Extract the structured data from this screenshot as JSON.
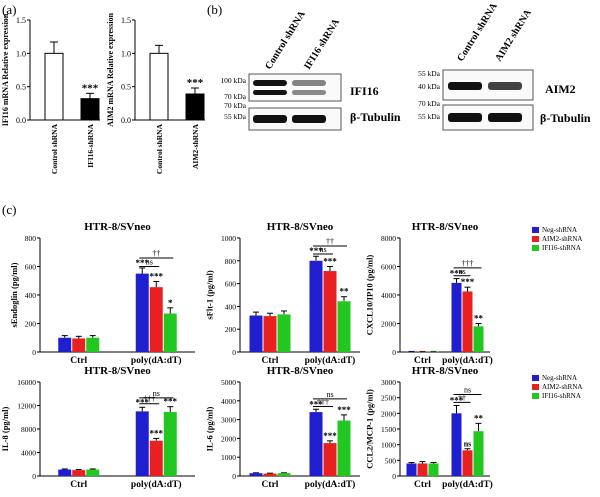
{
  "panel_labels": {
    "a": "(a)",
    "b": "(b)",
    "c": "(c)"
  },
  "chart_data": [
    {
      "id": "ifi16-mrna",
      "type": "bar",
      "ylabel": "IFI16 mRNA Relative expression",
      "ylim": [
        0,
        1.5
      ],
      "yticks": [
        0.0,
        0.5,
        1.0,
        1.5
      ],
      "ytick_labels": [
        "0.0",
        "0.5",
        "1.0",
        "1.5"
      ],
      "categories": [
        "Control shRNA",
        "IFI16-shRNA"
      ],
      "values": [
        1.0,
        0.32
      ],
      "errors": [
        0.17,
        0.08
      ],
      "bar_colors": [
        "#ffffff",
        "#000000"
      ],
      "annotations": [
        "",
        "***"
      ]
    },
    {
      "id": "aim2-mrna",
      "type": "bar",
      "ylabel": "AIM2 mRNA Relative expression",
      "ylim": [
        0,
        1.5
      ],
      "yticks": [
        0.0,
        0.5,
        1.0,
        1.5
      ],
      "ytick_labels": [
        "0.0",
        "0.5",
        "1.0",
        "1.5"
      ],
      "categories": [
        "Control shRNA",
        "AIM2-shRNA"
      ],
      "values": [
        1.0,
        0.39
      ],
      "errors": [
        0.12,
        0.09
      ],
      "bar_colors": [
        "#ffffff",
        "#000000"
      ],
      "annotations": [
        "",
        "***"
      ]
    },
    {
      "id": "sendoglin",
      "type": "bar",
      "title": "HTR-8/SVneo",
      "ylabel": "sEndoglin (pg/ml)",
      "ylim": [
        0,
        800
      ],
      "yticks": [
        0,
        200,
        400,
        600,
        800
      ],
      "ytick_labels": [
        "0",
        "200",
        "400",
        "600",
        "800"
      ],
      "categories": [
        "Ctrl",
        "poly(dA:dT)"
      ],
      "series": [
        {
          "name": "Neg-shRNA",
          "color": "#1f1fd0",
          "values": [
            100,
            550
          ],
          "errors": [
            15,
            40
          ],
          "stars": [
            "",
            "***"
          ]
        },
        {
          "name": "AIM2-shRNA",
          "color": "#e8201f",
          "values": [
            95,
            455
          ],
          "errors": [
            15,
            40
          ],
          "stars": [
            "",
            "***"
          ]
        },
        {
          "name": "IFI16-shRNA",
          "color": "#22c722",
          "values": [
            100,
            270
          ],
          "errors": [
            15,
            40
          ],
          "stars": [
            "",
            "*"
          ]
        }
      ],
      "comparisons": [
        {
          "label": "ns",
          "from": 0,
          "to": 1,
          "level": 600
        },
        {
          "label": "††",
          "from": 0,
          "to": 2,
          "level": 660
        }
      ]
    },
    {
      "id": "sflt1",
      "type": "bar",
      "title": "HTR-8/SVneo",
      "ylabel": "sFlt-1 (pg/ml)",
      "ylim": [
        0,
        1000
      ],
      "yticks": [
        0,
        200,
        400,
        600,
        800,
        1000
      ],
      "ytick_labels": [
        "0",
        "200",
        "400",
        "600",
        "800",
        "1000"
      ],
      "categories": [
        "Ctrl",
        "poly(dA:dT)"
      ],
      "series": [
        {
          "name": "Neg-shRNA",
          "color": "#1f1fd0",
          "values": [
            320,
            800
          ],
          "errors": [
            30,
            40
          ],
          "stars": [
            "",
            "***"
          ]
        },
        {
          "name": "AIM2-shRNA",
          "color": "#e8201f",
          "values": [
            315,
            710
          ],
          "errors": [
            25,
            40
          ],
          "stars": [
            "",
            "***"
          ]
        },
        {
          "name": "IFI16-shRNA",
          "color": "#22c722",
          "values": [
            330,
            445
          ],
          "errors": [
            30,
            40
          ],
          "stars": [
            "",
            "**"
          ]
        }
      ],
      "comparisons": [
        {
          "label": "ns",
          "from": 0,
          "to": 1,
          "level": 860
        },
        {
          "label": "††",
          "from": 0,
          "to": 2,
          "level": 930
        }
      ]
    },
    {
      "id": "cxcl10",
      "type": "bar",
      "title": "HTR-8/SVneo",
      "ylabel": "CXCL10/IP10 (pg/ml)",
      "ylim": [
        0,
        8000
      ],
      "yticks": [
        0,
        2000,
        4000,
        6000,
        8000
      ],
      "ytick_labels": [
        "0",
        "2000",
        "4000",
        "6000",
        "8000"
      ],
      "categories": [
        "Ctrl",
        "poly(dA:dT)"
      ],
      "series": [
        {
          "name": "Neg-shRNA",
          "color": "#1f1fd0",
          "values": [
            30,
            4850
          ],
          "errors": [
            10,
            300
          ],
          "stars": [
            "",
            "***"
          ]
        },
        {
          "name": "AIM2-shRNA",
          "color": "#e8201f",
          "values": [
            30,
            4250
          ],
          "errors": [
            10,
            300
          ],
          "stars": [
            "",
            "***"
          ]
        },
        {
          "name": "IFI16-shRNA",
          "color": "#22c722",
          "values": [
            30,
            1800
          ],
          "errors": [
            10,
            200
          ],
          "stars": [
            "",
            "**"
          ]
        }
      ],
      "comparisons": [
        {
          "label": "ns",
          "from": 0,
          "to": 1,
          "level": 5350
        },
        {
          "label": "†††",
          "from": 0,
          "to": 2,
          "level": 5900
        }
      ]
    },
    {
      "id": "il8",
      "type": "bar",
      "title": "HTR-8/SVneo",
      "ylabel": "IL-8 (pg/ml)",
      "ylim": [
        0,
        16000
      ],
      "yticks": [
        0,
        4000,
        8000,
        12000,
        16000
      ],
      "ytick_labels": [
        "0",
        "4000",
        "8000",
        "12000",
        "16000"
      ],
      "categories": [
        "Ctrl",
        "poly(dA:dT)"
      ],
      "series": [
        {
          "name": "Neg-shRNA",
          "color": "#1f1fd0",
          "values": [
            1100,
            11000
          ],
          "errors": [
            100,
            700
          ],
          "stars": [
            "",
            "***"
          ]
        },
        {
          "name": "AIM2-shRNA",
          "color": "#e8201f",
          "values": [
            1000,
            6000
          ],
          "errors": [
            100,
            400
          ],
          "stars": [
            "",
            "***"
          ]
        },
        {
          "name": "IFI16-shRNA",
          "color": "#22c722",
          "values": [
            1100,
            10900
          ],
          "errors": [
            100,
            900
          ],
          "stars": [
            "",
            "***"
          ]
        }
      ],
      "comparisons": [
        {
          "label": "†††",
          "from": 0,
          "to": 1,
          "level": 12300
        },
        {
          "label": "ns",
          "from": 0,
          "to": 2,
          "level": 13300
        }
      ]
    },
    {
      "id": "il6",
      "type": "bar",
      "title": "HTR-8/SVneo",
      "ylabel": "IL-6 (pg/ml)",
      "ylim": [
        0,
        5000
      ],
      "yticks": [
        0,
        1000,
        2000,
        3000,
        4000,
        5000
      ],
      "ytick_labels": [
        "0",
        "1000",
        "2000",
        "3000",
        "4000",
        "5000"
      ],
      "categories": [
        "Ctrl",
        "poly(dA:dT)"
      ],
      "series": [
        {
          "name": "Neg-shRNA",
          "color": "#1f1fd0",
          "values": [
            150,
            3400
          ],
          "errors": [
            20,
            150
          ],
          "stars": [
            "",
            "***"
          ]
        },
        {
          "name": "AIM2-shRNA",
          "color": "#e8201f",
          "values": [
            130,
            1750
          ],
          "errors": [
            20,
            120
          ],
          "stars": [
            "",
            "***"
          ]
        },
        {
          "name": "IFI16-shRNA",
          "color": "#22c722",
          "values": [
            150,
            2950
          ],
          "errors": [
            20,
            300
          ],
          "stars": [
            "",
            "***"
          ]
        }
      ],
      "comparisons": [
        {
          "label": "†††",
          "from": 0,
          "to": 1,
          "level": 3700
        },
        {
          "label": "ns",
          "from": 0,
          "to": 2,
          "level": 4100
        }
      ]
    },
    {
      "id": "ccl2",
      "type": "bar",
      "title": "HTR-8/SVneo",
      "ylabel": "CCL2/MCP-1 (pg/ml)",
      "ylim": [
        0,
        3000
      ],
      "yticks": [
        0,
        500,
        1000,
        1500,
        2000,
        2500,
        3000
      ],
      "ytick_labels": [
        "0",
        "500",
        "1000",
        "1500",
        "2000",
        "2500",
        "3000"
      ],
      "categories": [
        "Ctrl",
        "poly(dA:dT)"
      ],
      "series": [
        {
          "name": "Neg-shRNA",
          "color": "#1f1fd0",
          "values": [
            400,
            2000
          ],
          "errors": [
            30,
            250
          ],
          "stars": [
            "",
            "***"
          ]
        },
        {
          "name": "AIM2-shRNA",
          "color": "#e8201f",
          "values": [
            400,
            820
          ],
          "errors": [
            60,
            50
          ],
          "stars": [
            "",
            "ns"
          ]
        },
        {
          "name": "IFI16-shRNA",
          "color": "#22c722",
          "values": [
            400,
            1430
          ],
          "errors": [
            30,
            250
          ],
          "stars": [
            "",
            "**"
          ]
        }
      ],
      "comparisons": [
        {
          "label": "††",
          "from": 0,
          "to": 1,
          "level": 2350
        },
        {
          "label": "ns",
          "from": 0,
          "to": 2,
          "level": 2600
        }
      ]
    }
  ],
  "legend": [
    {
      "name": "Neg-shRNA",
      "color": "#1f1fd0"
    },
    {
      "name": "AIM2-shRNA",
      "color": "#e8201f"
    },
    {
      "name": "IFI16-shRNA",
      "color": "#22c722"
    }
  ],
  "blots": [
    {
      "id": "ifi16-blot",
      "lanes": [
        "Control shRNA",
        "IFI16 shRNA"
      ],
      "markers": [
        "100 kDa",
        "70 kDa",
        "70 kDa",
        "55 kDa"
      ],
      "proteins": [
        "IFI16",
        "β-Tubulin"
      ],
      "levels": [
        [
          1.0,
          0.35
        ],
        [
          1.0,
          1.0
        ]
      ]
    },
    {
      "id": "aim2-blot",
      "lanes": [
        "Control shRNA",
        "AIM2 shRNA"
      ],
      "markers": [
        "55 kDa",
        "40 kDa",
        "70 kDa",
        "55 kDa"
      ],
      "proteins": [
        "AIM2",
        "β-Tubulin"
      ],
      "levels": [
        [
          1.0,
          0.7
        ],
        [
          1.0,
          1.0
        ]
      ]
    }
  ]
}
